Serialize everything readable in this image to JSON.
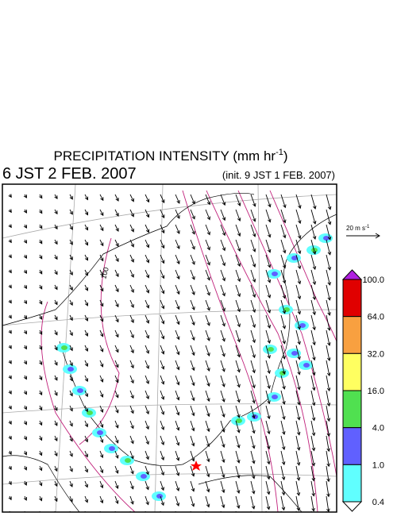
{
  "header": {
    "title": "PRECIPITATION INTENSITY (mm hr",
    "title_sup": "-1",
    "title_end": ")",
    "valid_time": "6 JST 2 FEB. 2007",
    "init_time": "(init. 9 JST 1 FEB. 2007)"
  },
  "map": {
    "contour_label": "100"
  },
  "reference_vector": {
    "label": "20 m s",
    "label_sup": "-1"
  },
  "colorbar": {
    "over_color": "#b020e0",
    "under_color": "#ffffff",
    "labels": [
      "100.0",
      "64.0",
      "32.0",
      "16.0",
      "4.0",
      "1.0",
      "0.4"
    ],
    "colors": [
      "#e00000",
      "#f8a040",
      "#ffff60",
      "#50e050",
      "#6060ff",
      "#60ffff"
    ]
  }
}
